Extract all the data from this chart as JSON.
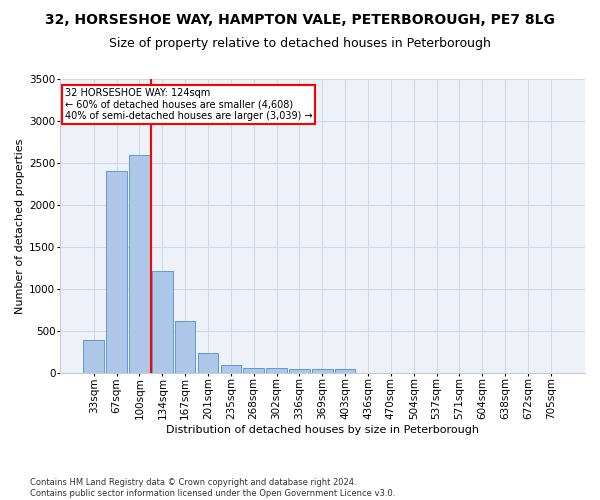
{
  "title_line1": "32, HORSESHOE WAY, HAMPTON VALE, PETERBOROUGH, PE7 8LG",
  "title_line2": "Size of property relative to detached houses in Peterborough",
  "xlabel": "Distribution of detached houses by size in Peterborough",
  "ylabel": "Number of detached properties",
  "footnote": "Contains HM Land Registry data © Crown copyright and database right 2024.\nContains public sector information licensed under the Open Government Licence v3.0.",
  "categories": [
    "33sqm",
    "67sqm",
    "100sqm",
    "134sqm",
    "167sqm",
    "201sqm",
    "235sqm",
    "268sqm",
    "302sqm",
    "336sqm",
    "369sqm",
    "403sqm",
    "436sqm",
    "470sqm",
    "504sqm",
    "537sqm",
    "571sqm",
    "604sqm",
    "638sqm",
    "672sqm",
    "705sqm"
  ],
  "values": [
    390,
    2400,
    2600,
    1220,
    620,
    245,
    100,
    65,
    60,
    55,
    50,
    50,
    0,
    0,
    0,
    0,
    0,
    0,
    0,
    0,
    0
  ],
  "bar_color": "#aec6e8",
  "bar_edge_color": "#5b9bd5",
  "vline_pos": 2.5,
  "vline_color": "red",
  "annotation_text": "32 HORSESHOE WAY: 124sqm\n← 60% of detached houses are smaller (4,608)\n40% of semi-detached houses are larger (3,039) →",
  "annotation_box_color": "white",
  "annotation_box_edge": "red",
  "ylim": [
    0,
    3500
  ],
  "yticks": [
    0,
    500,
    1000,
    1500,
    2000,
    2500,
    3000,
    3500
  ],
  "grid_color": "#d0d8e8",
  "background_color": "#eef2f8",
  "title_fontsize": 10,
  "subtitle_fontsize": 9,
  "axis_label_fontsize": 8,
  "tick_fontsize": 7.5,
  "ylabel_fontsize": 8,
  "footnote_fontsize": 6
}
